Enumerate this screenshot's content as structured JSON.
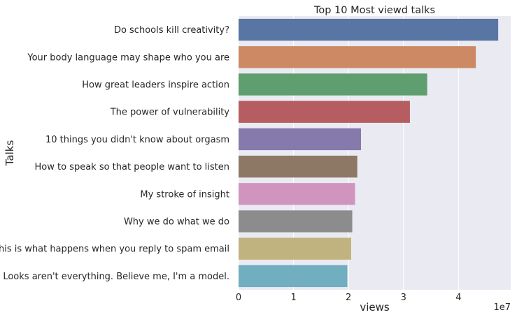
{
  "chart_data": {
    "type": "bar",
    "orientation": "horizontal",
    "title": "Top 10 Most viewd talks",
    "xlabel": "views",
    "ylabel": "Talks",
    "x_offset_label": "1e7",
    "x_scale": 10000000,
    "xlim": [
      0,
      4.95
    ],
    "xticks": [
      0,
      1,
      2,
      3,
      4
    ],
    "xtick_labels": [
      "0",
      "1",
      "2",
      "3",
      "4"
    ],
    "grid": true,
    "categories": [
      "Do schools kill creativity?",
      "Your body language may shape who you are",
      "How great leaders inspire action",
      "The power of vulnerability",
      "10 things you didn't know about orgasm",
      "How to speak so that people want to listen",
      "My stroke of insight",
      "Why we do what we do",
      "This is what happens when you reply to spam email",
      "Looks aren't everything. Believe me, I'm a model."
    ],
    "values": [
      47227110,
      43155405,
      34309432,
      31168150,
      22270883,
      21594632,
      21190883,
      20685401,
      20475972,
      19787465
    ],
    "colors": [
      "#5875a4",
      "#cc8963",
      "#5f9e6e",
      "#b55d60",
      "#857aab",
      "#8d7866",
      "#d095bf",
      "#8c8c8c",
      "#c1b37f",
      "#71aec0"
    ]
  }
}
